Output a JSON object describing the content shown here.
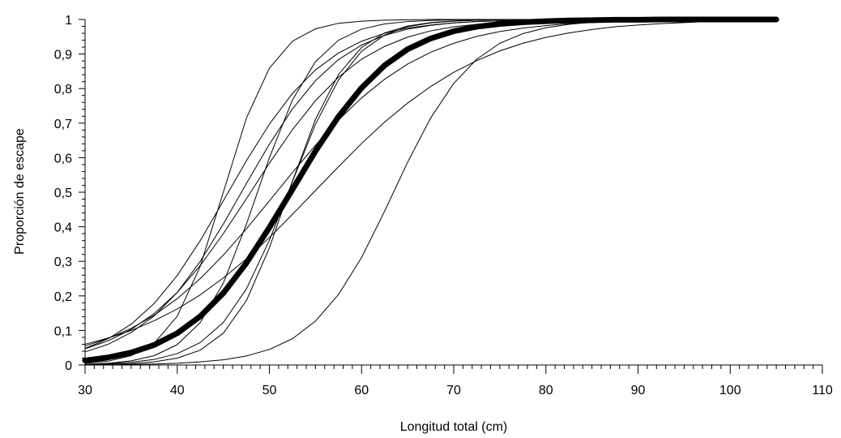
{
  "chart_data": {
    "type": "line",
    "title": "",
    "xlabel": "Longitud total (cm)",
    "ylabel": "Proporción de escape",
    "xlim": [
      30,
      110
    ],
    "ylim": [
      0,
      1
    ],
    "x_ticks": [
      "30",
      "40",
      "50",
      "60",
      "70",
      "80",
      "90",
      "100",
      "110"
    ],
    "y_ticks": [
      "0",
      "0,1",
      "0,2",
      "0,3",
      "0,4",
      "0,5",
      "0,6",
      "0,7",
      "0,8",
      "0,9",
      "1"
    ],
    "grid": false,
    "legend": "none",
    "x": [
      30,
      32.5,
      35,
      37.5,
      40,
      42.5,
      45,
      47.5,
      50,
      52.5,
      55,
      57.5,
      60,
      62.5,
      65,
      67.5,
      70,
      72.5,
      75,
      77.5,
      80,
      82.5,
      85,
      87.5,
      90,
      92.5,
      95,
      97.5,
      100,
      102.5,
      105
    ],
    "series": [
      {
        "values": [
          0.013,
          0.022,
          0.036,
          0.058,
          0.092,
          0.141,
          0.208,
          0.295,
          0.398,
          0.508,
          0.619,
          0.719,
          0.802,
          0.867,
          0.914,
          0.945,
          0.966,
          0.979,
          0.987,
          0.992,
          0.995,
          0.997,
          0.998,
          0.999,
          0.999,
          1.0,
          1.0,
          1.0,
          1.0,
          1.0,
          1.0
        ],
        "emphasis": "bold"
      },
      {
        "values": [
          0.005,
          0.011,
          0.027,
          0.063,
          0.141,
          0.286,
          0.5,
          0.714,
          0.859,
          0.937,
          0.973,
          0.989,
          0.995,
          0.998,
          0.999,
          1.0,
          1.0,
          1.0,
          1.0,
          1.0,
          1.0,
          1.0,
          1.0,
          1.0,
          1.0,
          1.0,
          1.0,
          1.0,
          1.0,
          1.0,
          1.0
        ]
      },
      {
        "values": [
          0.048,
          0.076,
          0.118,
          0.178,
          0.259,
          0.36,
          0.475,
          0.591,
          0.697,
          0.786,
          0.854,
          0.903,
          0.937,
          0.96,
          0.975,
          0.984,
          0.99,
          0.994,
          0.996,
          0.998,
          0.999,
          0.999,
          1.0,
          1.0,
          1.0,
          1.0,
          1.0,
          1.0,
          1.0,
          1.0,
          1.0
        ]
      },
      {
        "values": [
          0.047,
          0.07,
          0.103,
          0.149,
          0.21,
          0.288,
          0.38,
          0.481,
          0.584,
          0.681,
          0.765,
          0.833,
          0.885,
          0.922,
          0.949,
          0.967,
          0.979,
          0.986,
          0.991,
          0.994,
          0.996,
          0.998,
          0.999,
          0.999,
          1.0,
          1.0,
          1.0,
          1.0,
          1.0,
          1.0,
          1.0
        ]
      },
      {
        "values": [
          0.038,
          0.06,
          0.094,
          0.142,
          0.21,
          0.3,
          0.408,
          0.525,
          0.639,
          0.741,
          0.823,
          0.884,
          0.926,
          0.954,
          0.972,
          0.983,
          0.99,
          0.994,
          0.996,
          0.998,
          0.999,
          0.999,
          1.0,
          1.0,
          1.0,
          1.0,
          1.0,
          1.0,
          1.0,
          1.0,
          1.0
        ]
      },
      {
        "values": [
          0.055,
          0.077,
          0.106,
          0.144,
          0.192,
          0.25,
          0.318,
          0.394,
          0.475,
          0.557,
          0.636,
          0.709,
          0.773,
          0.827,
          0.871,
          0.905,
          0.931,
          0.951,
          0.965,
          0.975,
          0.982,
          0.988,
          0.991,
          0.994,
          0.996,
          0.997,
          0.998,
          0.999,
          0.999,
          1.0,
          1.0
        ]
      },
      {
        "values": [
          0.06,
          0.078,
          0.1,
          0.128,
          0.162,
          0.203,
          0.252,
          0.307,
          0.369,
          0.436,
          0.505,
          0.574,
          0.641,
          0.703,
          0.758,
          0.806,
          0.847,
          0.881,
          0.909,
          0.931,
          0.948,
          0.961,
          0.971,
          0.979,
          0.984,
          0.988,
          0.991,
          0.994,
          0.995,
          0.997,
          0.998
        ]
      },
      {
        "values": [
          0.002,
          0.005,
          0.012,
          0.027,
          0.059,
          0.123,
          0.237,
          0.407,
          0.6,
          0.767,
          0.878,
          0.94,
          0.972,
          0.987,
          0.994,
          0.997,
          0.999,
          0.999,
          1.0,
          1.0,
          1.0,
          1.0,
          1.0,
          1.0,
          1.0,
          1.0,
          1.0,
          1.0,
          1.0,
          1.0,
          1.0
        ]
      },
      {
        "values": [
          0.002,
          0.004,
          0.008,
          0.016,
          0.033,
          0.065,
          0.123,
          0.22,
          0.361,
          0.531,
          0.697,
          0.825,
          0.908,
          0.955,
          0.979,
          0.99,
          0.995,
          0.998,
          0.999,
          1.0,
          1.0,
          1.0,
          1.0,
          1.0,
          1.0,
          1.0,
          1.0,
          1.0,
          1.0,
          1.0,
          1.0
        ]
      },
      {
        "values": [
          0.001,
          0.002,
          0.004,
          0.009,
          0.02,
          0.043,
          0.092,
          0.186,
          0.339,
          0.532,
          0.711,
          0.841,
          0.919,
          0.961,
          0.981,
          0.991,
          0.996,
          0.998,
          0.999,
          1.0,
          1.0,
          1.0,
          1.0,
          1.0,
          1.0,
          1.0,
          1.0,
          1.0,
          1.0,
          1.0,
          1.0
        ]
      },
      {
        "values": [
          0.0,
          0.001,
          0.002,
          0.003,
          0.005,
          0.009,
          0.015,
          0.026,
          0.045,
          0.076,
          0.127,
          0.204,
          0.311,
          0.445,
          0.587,
          0.715,
          0.815,
          0.885,
          0.931,
          0.959,
          0.976,
          0.986,
          0.992,
          0.995,
          0.997,
          0.998,
          0.999,
          0.999,
          1.0,
          1.0,
          1.0
        ]
      }
    ]
  }
}
